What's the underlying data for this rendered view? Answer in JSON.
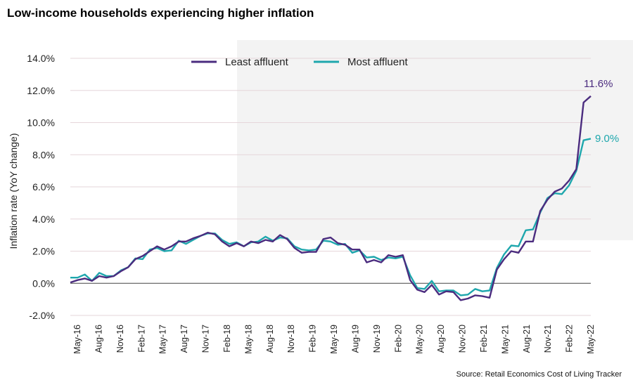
{
  "chart_data": {
    "type": "line",
    "title": "Low-income households experiencing higher inflation",
    "source": "Source: Retail Economics Cost of Living Tracker",
    "xlabel": "",
    "ylabel": "Inflation rate (YoY change)",
    "ylim": [
      -2.0,
      14.0
    ],
    "yticks": [
      "14.0%",
      "12.0%",
      "10.0%",
      "8.0%",
      "6.0%",
      "4.0%",
      "2.0%",
      "0.0%",
      "-2.0%"
    ],
    "ytick_values": [
      14,
      12,
      10,
      8,
      6,
      4,
      2,
      0,
      -2
    ],
    "x_tick_labels": [
      "May-16",
      "Aug-16",
      "Nov-16",
      "Feb-17",
      "May-17",
      "Aug-17",
      "Nov-17",
      "Feb-18",
      "May-18",
      "Aug-18",
      "Nov-18",
      "Feb-19",
      "May-19",
      "Aug-19",
      "Nov-19",
      "Feb-20",
      "May-20",
      "Aug-20",
      "Nov-20",
      "Feb-21",
      "May-21",
      "Aug-21",
      "Nov-21",
      "Feb-22",
      "May-22"
    ],
    "legend": [
      "Least affluent",
      "Most affluent"
    ],
    "legend_position": "top",
    "end_labels": {
      "least": "11.6%",
      "most": "9.0%"
    },
    "colors": {
      "least": "#4b2c7f",
      "most": "#1ea7ad",
      "grid": "#e6d6da",
      "shade": "#f3f3f3",
      "axis": "#444444"
    },
    "series": [
      {
        "name": "Least affluent",
        "values": [
          0.05,
          0.2,
          0.3,
          0.15,
          0.45,
          0.35,
          0.45,
          0.75,
          1.0,
          1.5,
          1.7,
          2.0,
          2.3,
          2.1,
          2.3,
          2.6,
          2.6,
          2.8,
          2.95,
          3.15,
          3.05,
          2.6,
          2.3,
          2.5,
          2.3,
          2.6,
          2.5,
          2.7,
          2.6,
          3.0,
          2.75,
          2.2,
          1.9,
          1.95,
          1.95,
          2.75,
          2.85,
          2.5,
          2.4,
          2.1,
          2.1,
          1.3,
          1.45,
          1.3,
          1.75,
          1.65,
          1.75,
          0.2,
          -0.4,
          -0.55,
          -0.1,
          -0.7,
          -0.5,
          -0.55,
          -1.05,
          -0.95,
          -0.75,
          -0.8,
          -0.9,
          0.85,
          1.5,
          2.0,
          1.9,
          2.6,
          2.6,
          4.5,
          5.2,
          5.7,
          5.9,
          6.4,
          7.1,
          11.25,
          11.65
        ]
      },
      {
        "name": "Most affluent",
        "values": [
          0.35,
          0.35,
          0.55,
          0.15,
          0.65,
          0.45,
          0.45,
          0.8,
          1.0,
          1.55,
          1.5,
          2.1,
          2.2,
          2.0,
          2.05,
          2.65,
          2.45,
          2.7,
          2.95,
          3.1,
          3.1,
          2.7,
          2.45,
          2.55,
          2.3,
          2.55,
          2.6,
          2.9,
          2.65,
          2.85,
          2.8,
          2.3,
          2.1,
          2.05,
          2.1,
          2.65,
          2.6,
          2.4,
          2.45,
          1.9,
          2.05,
          1.6,
          1.65,
          1.45,
          1.6,
          1.55,
          1.65,
          0.5,
          -0.3,
          -0.35,
          0.15,
          -0.5,
          -0.45,
          -0.45,
          -0.75,
          -0.7,
          -0.35,
          -0.5,
          -0.45,
          0.95,
          1.8,
          2.35,
          2.3,
          3.3,
          3.35,
          4.4,
          5.3,
          5.6,
          5.55,
          6.1,
          7.0,
          8.9,
          9.0
        ]
      }
    ]
  }
}
